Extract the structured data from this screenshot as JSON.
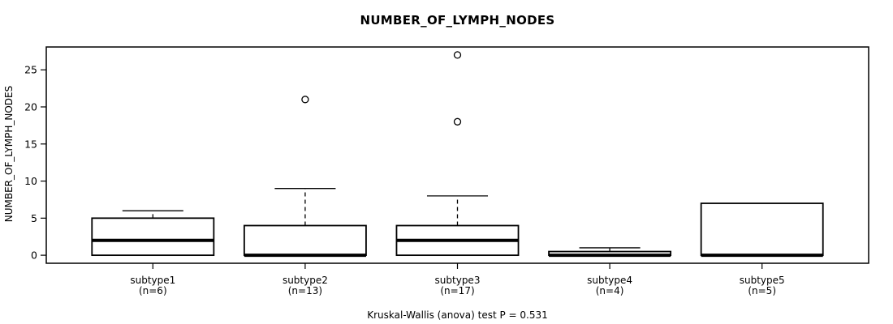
{
  "chart_data": {
    "type": "boxplot",
    "title": "NUMBER_OF_LYMPH_NODES",
    "ylabel": "NUMBER_OF_LYMPH_NODES",
    "xlabel": "",
    "footer": "Kruskal-Wallis (anova) test P = 0.531",
    "yticks": [
      0,
      5,
      10,
      15,
      20,
      25
    ],
    "ylim": [
      -1.08,
      28.08
    ],
    "xlim": [
      0.3,
      5.7
    ],
    "box_width": 0.8,
    "grid": false,
    "legend": "none",
    "colors": {
      "line": "#000000",
      "box_fill": "#ffffff",
      "background": "#ffffff"
    },
    "groups": [
      {
        "label": "subtype1",
        "n_label": "(n=6)",
        "n": 6,
        "position": 1,
        "q1": 0,
        "median": 2,
        "q3": 5,
        "whisker_low": 0,
        "whisker_high": 6,
        "outliers": []
      },
      {
        "label": "subtype2",
        "n_label": "(n=13)",
        "n": 13,
        "position": 2,
        "q1": 0,
        "median": 0,
        "q3": 4,
        "whisker_low": 0,
        "whisker_high": 9,
        "outliers": [
          21
        ]
      },
      {
        "label": "subtype3",
        "n_label": "(n=17)",
        "n": 17,
        "position": 3,
        "q1": 0,
        "median": 2,
        "q3": 4,
        "whisker_low": 0,
        "whisker_high": 8,
        "outliers": [
          18,
          27
        ]
      },
      {
        "label": "subtype4",
        "n_label": "(n=4)",
        "n": 4,
        "position": 4,
        "q1": 0,
        "median": 0,
        "q3": 0.5,
        "whisker_low": 0,
        "whisker_high": 1,
        "outliers": []
      },
      {
        "label": "subtype5",
        "n_label": "(n=5)",
        "n": 5,
        "position": 5,
        "q1": 0,
        "median": 0,
        "q3": 7,
        "whisker_low": 0,
        "whisker_high": 7,
        "outliers": []
      }
    ]
  }
}
